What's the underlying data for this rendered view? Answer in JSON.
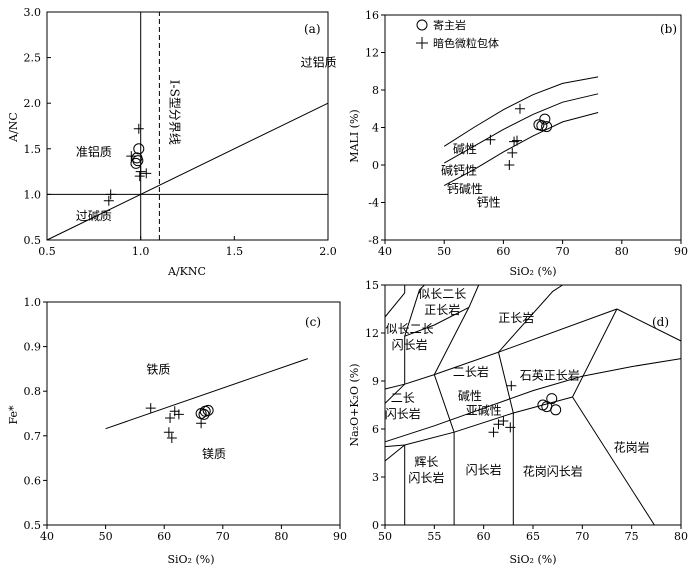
{
  "panels": [
    {
      "id": "a",
      "panel_label": "(a)",
      "xlabel": "A/KNC",
      "ylabel": "A/NC",
      "xlim": [
        0.5,
        2.0
      ],
      "ylim": [
        0.5,
        3.0
      ],
      "xticks": [
        "0.5",
        "1.0",
        "1.5",
        "2.0"
      ],
      "yticks": [
        "0.5",
        "1.0",
        "1.5",
        "2.0",
        "2.5",
        "3.0"
      ],
      "xtick_values": [
        0.5,
        1.0,
        1.5,
        2.0
      ],
      "ytick_values": [
        0.5,
        1.0,
        1.5,
        2.0,
        2.5,
        3.0
      ],
      "field_labels": [
        {
          "text": "过铝质",
          "x": 1.95,
          "y": 2.4
        },
        {
          "text": "准铝质",
          "x": 0.75,
          "y": 1.42
        },
        {
          "text": "过碱质",
          "x": 0.75,
          "y": 0.72
        }
      ],
      "boundary_label": {
        "text": "I-S型分界线",
        "x": 1.16,
        "y": 1.9
      },
      "host_rock": [
        [
          0.99,
          1.5
        ],
        [
          0.98,
          1.4
        ],
        [
          0.985,
          1.37
        ],
        [
          0.975,
          1.34
        ]
      ],
      "enclave": [
        [
          0.99,
          1.72
        ],
        [
          0.95,
          1.42
        ],
        [
          0.84,
          1.0
        ],
        [
          0.83,
          0.93
        ],
        [
          1.0,
          1.25
        ],
        [
          1.03,
          1.23
        ],
        [
          0.995,
          1.2
        ]
      ]
    },
    {
      "id": "b",
      "panel_label": "(b)",
      "xlabel": "SiO₂ (%)",
      "ylabel": "MALI (%)",
      "xlim": [
        40,
        90
      ],
      "ylim": [
        -8,
        16
      ],
      "xticks": [
        "40",
        "50",
        "60",
        "70",
        "80",
        "90"
      ],
      "yticks": [
        "-8",
        "-4",
        "0",
        "4",
        "8",
        "12",
        "16"
      ],
      "xtick_values": [
        40,
        50,
        60,
        70,
        80,
        90
      ],
      "ytick_values": [
        -8,
        -4,
        0,
        4,
        8,
        12,
        16
      ],
      "legend": [
        {
          "marker": "circle",
          "label": "寄主岩"
        },
        {
          "marker": "cross",
          "label": "暗色微粒包体"
        }
      ],
      "field_labels": [
        {
          "text": "碱性",
          "x": 53.5,
          "y": 1.3
        },
        {
          "text": "碱钙性",
          "x": 52.5,
          "y": -1.0
        },
        {
          "text": "钙碱性",
          "x": 53.5,
          "y": -3.0
        },
        {
          "text": "钙性",
          "x": 57.5,
          "y": -4.4
        }
      ],
      "host_rock": [
        [
          66.0,
          4.3
        ],
        [
          66.5,
          4.2
        ],
        [
          67.0,
          4.9
        ],
        [
          67.3,
          4.1
        ]
      ],
      "enclave": [
        [
          62.8,
          6.0
        ],
        [
          57.8,
          2.7
        ],
        [
          61.8,
          2.5
        ],
        [
          62.3,
          2.6
        ],
        [
          61.5,
          1.3
        ],
        [
          61.0,
          0.0
        ]
      ]
    },
    {
      "id": "c",
      "panel_label": "(c)",
      "xlabel": "SiO₂ (%)",
      "ylabel": "Fe*",
      "xlim": [
        40,
        90
      ],
      "ylim": [
        0.5,
        1.0
      ],
      "xticks": [
        "40",
        "50",
        "60",
        "70",
        "80",
        "90"
      ],
      "yticks": [
        "0.5",
        "0.6",
        "0.7",
        "0.8",
        "0.9",
        "1.0"
      ],
      "xtick_values": [
        40,
        50,
        60,
        70,
        80,
        90
      ],
      "ytick_values": [
        0.5,
        0.6,
        0.7,
        0.8,
        0.9,
        1.0
      ],
      "field_labels": [
        {
          "text": "铁质",
          "x": 59.0,
          "y": 0.84
        },
        {
          "text": "镁质",
          "x": 68.5,
          "y": 0.65
        }
      ],
      "host_rock": [
        [
          66.3,
          0.75
        ],
        [
          67.0,
          0.755
        ],
        [
          67.5,
          0.757
        ],
        [
          66.8,
          0.748
        ]
      ],
      "enclave": [
        [
          57.7,
          0.762
        ],
        [
          61.8,
          0.755
        ],
        [
          62.5,
          0.748
        ],
        [
          61.0,
          0.74
        ],
        [
          66.3,
          0.728
        ],
        [
          60.8,
          0.708
        ],
        [
          61.3,
          0.695
        ]
      ]
    },
    {
      "id": "d",
      "panel_label": "(d)",
      "xlabel": "SiO₂ (%)",
      "ylabel": "Na₂O+K₂O (%)",
      "xlim": [
        50,
        80
      ],
      "ylim": [
        0,
        15
      ],
      "xticks": [
        "50",
        "55",
        "60",
        "65",
        "70",
        "75",
        "80"
      ],
      "yticks": [
        "0",
        "3",
        "6",
        "9",
        "12",
        "15"
      ],
      "xtick_values": [
        50,
        55,
        60,
        65,
        70,
        75,
        80
      ],
      "ytick_values": [
        0,
        3,
        6,
        9,
        12,
        15
      ],
      "field_labels": [
        {
          "text": "似长二长",
          "x": 55.8,
          "y": 14.2
        },
        {
          "text": "正长岩",
          "x": 55.8,
          "y": 13.2
        },
        {
          "text": "正长岩",
          "x": 63.3,
          "y": 12.7
        },
        {
          "text": "似长二长",
          "x": 52.5,
          "y": 12.0
        },
        {
          "text": "闪长岩",
          "x": 52.5,
          "y": 11.0
        },
        {
          "text": "二长岩",
          "x": 58.7,
          "y": 9.3
        },
        {
          "text": "石英正长岩",
          "x": 66.7,
          "y": 9.1
        },
        {
          "text": "二长",
          "x": 51.8,
          "y": 7.7
        },
        {
          "text": "闪长岩",
          "x": 51.8,
          "y": 6.7
        },
        {
          "text": "碱性",
          "x": 58.6,
          "y": 7.8
        },
        {
          "text": "亚碱性",
          "x": 60.0,
          "y": 6.9
        },
        {
          "text": "辉长",
          "x": 54.2,
          "y": 3.7
        },
        {
          "text": "闪长岩",
          "x": 54.2,
          "y": 2.7
        },
        {
          "text": "闪长岩",
          "x": 60.0,
          "y": 3.2
        },
        {
          "text": "花岗闪长岩",
          "x": 67.0,
          "y": 3.1
        },
        {
          "text": "花岗岩",
          "x": 75.0,
          "y": 4.6
        }
      ],
      "host_rock": [
        [
          66.0,
          7.5
        ],
        [
          66.4,
          7.4
        ],
        [
          66.9,
          7.9
        ],
        [
          67.3,
          7.2
        ]
      ],
      "enclave": [
        [
          62.8,
          8.7
        ],
        [
          61.0,
          5.8
        ],
        [
          61.5,
          6.3
        ],
        [
          62.0,
          6.5
        ],
        [
          62.7,
          6.1
        ]
      ]
    }
  ]
}
